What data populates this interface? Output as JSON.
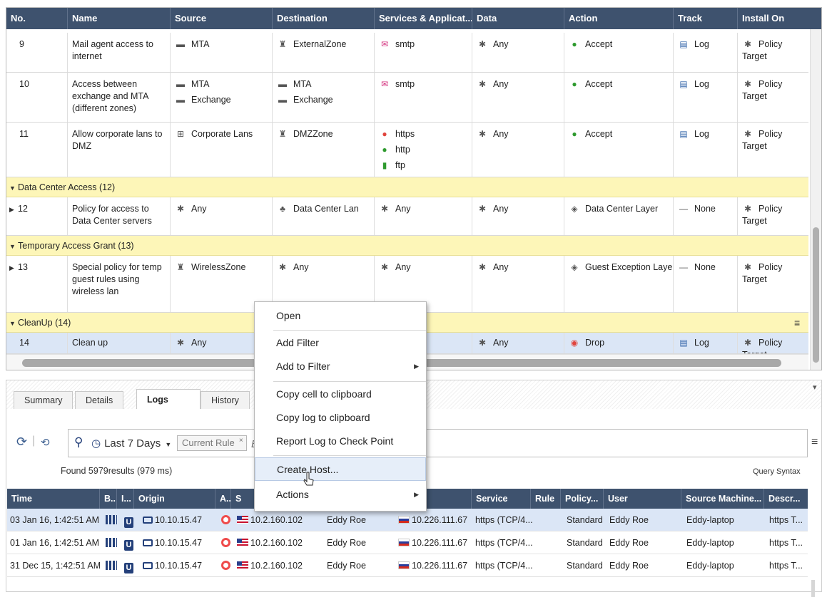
{
  "policy": {
    "columns": [
      "No.",
      "Name",
      "Source",
      "Destination",
      "Services & Applicat...",
      "Data",
      "Action",
      "Track",
      "Install On"
    ],
    "rows": [
      {
        "no": "9",
        "name": "Mail agent access to internet",
        "source": [
          "MTA"
        ],
        "destination": [
          "ExternalZone"
        ],
        "services": [
          "smtp"
        ],
        "data": "Any",
        "action": "Accept",
        "track": "Log",
        "install": "Policy Target"
      },
      {
        "no": "10",
        "name": "Access between exchange and MTA (different zones)",
        "source": [
          "MTA",
          "Exchange"
        ],
        "destination": [
          "MTA",
          "Exchange"
        ],
        "services": [
          "smtp"
        ],
        "data": "Any",
        "action": "Accept",
        "track": "Log",
        "install": "Policy Target"
      },
      {
        "no": "11",
        "name": "Allow corporate lans to DMZ",
        "source": [
          "Corporate Lans"
        ],
        "destination": [
          "DMZZone"
        ],
        "services": [
          "https",
          "http",
          "ftp"
        ],
        "data": "Any",
        "action": "Accept",
        "track": "Log",
        "install": "Policy Target"
      }
    ],
    "section_dc": "Data Center Access (12)",
    "row12": {
      "no": "12",
      "name": "Policy for access to Data Center servers",
      "source": "Any",
      "destination": "Data Center Lan",
      "services": "Any",
      "data": "Any",
      "action": "Data Center Layer",
      "track": "None",
      "install": "Policy Target"
    },
    "section_temp": "Temporary Access Grant (13)",
    "row13": {
      "no": "13",
      "name": "Special policy for temp guest rules using wireless lan",
      "source": "WirelessZone",
      "destination": "Any",
      "services": "Any",
      "data": "Any",
      "action": "Guest Exception Layer",
      "track": "None",
      "install": "Policy Target"
    },
    "section_cleanup": "CleanUp (14)",
    "row14": {
      "no": "14",
      "name": "Clean up",
      "source": "Any",
      "data": "Any",
      "action": "Drop",
      "track": "Log",
      "install": "Policy Target"
    }
  },
  "tabs": [
    "Summary",
    "Details",
    "Logs",
    "History"
  ],
  "active_tab": "Logs",
  "toolbar": {
    "time_range": "Last 7 Days",
    "chip": "Current Rule",
    "query_placeholder": "Enter search query",
    "found_count": "Found 5979",
    "found_rest": "results (979 ms)",
    "query_syntax": "Query Syntax"
  },
  "logs": {
    "columns": [
      "Time",
      "B..",
      "I...",
      "Origin",
      "A...",
      "S",
      "",
      "tion",
      "Service",
      "Rule",
      "Policy...",
      "User",
      "Source Machine...",
      "Descr..."
    ],
    "rows": [
      {
        "time": "03 Jan 16, 1:42:51 AM",
        "origin": "10.10.15.47",
        "source": "10.2.160.102",
        "source_user": "Eddy Roe",
        "destination": "10.226.111.67",
        "service": "https (TCP/4...",
        "policy": "Standard",
        "user": "Eddy Roe",
        "machine": "Eddy-laptop",
        "descr": "https T..."
      },
      {
        "time": "01 Jan 16, 1:42:51 AM",
        "origin": "10.10.15.47",
        "source": "10.2.160.102",
        "source_user": "Eddy Roe",
        "destination": "10.226.111.67",
        "service": "https (TCP/4...",
        "policy": "Standard",
        "user": "Eddy Roe",
        "machine": "Eddy-laptop",
        "descr": "https T..."
      },
      {
        "time": "31 Dec 15, 1:42:51 AM",
        "origin": "10.10.15.47",
        "source": "10.2.160.102",
        "source_user": "Eddy Roe",
        "destination": "10.226.111.67",
        "service": "https (TCP/4...",
        "policy": "Standard",
        "user": "Eddy Roe",
        "machine": "Eddy-laptop",
        "descr": "https T..."
      }
    ]
  },
  "context_menu": {
    "items": [
      "Open",
      "Add Filter",
      "Add to Filter",
      "Copy cell to clipboard",
      "Copy log to clipboard",
      "Report Log to Check Point",
      "Create Host...",
      "Actions"
    ],
    "highlighted": "Create Host..."
  },
  "colors": {
    "header": "#3e526e",
    "section": "#fdf6b8",
    "selected_row": "#dbe6f6"
  }
}
